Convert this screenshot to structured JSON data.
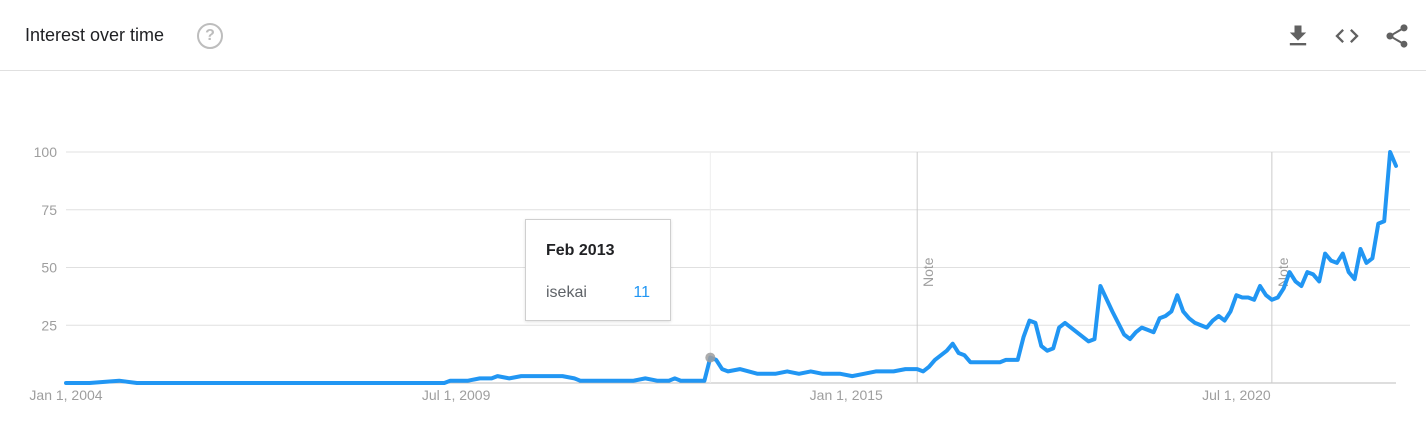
{
  "header": {
    "title": "Interest over time",
    "help_glyph": "?",
    "help_icon": "help-circle-icon",
    "tools": [
      {
        "name": "download-icon"
      },
      {
        "name": "embed-code-icon"
      },
      {
        "name": "share-icon"
      }
    ]
  },
  "tooltip": {
    "date": "Feb 2013",
    "term": "isekai",
    "value": "11"
  },
  "colors": {
    "series": "#2196f3",
    "grid": "#e0e0e0",
    "text": "#202124",
    "muted": "#9e9e9e"
  },
  "chart_data": {
    "type": "line",
    "title": "Interest over time",
    "xlabel": "",
    "ylabel": "",
    "ylim": [
      0,
      100
    ],
    "yticks": [
      25,
      50,
      75,
      100
    ],
    "xlim": [
      "2004-01",
      "2022-01"
    ],
    "xticks": [
      {
        "label": "Jan 1, 2004",
        "date": "2004-01"
      },
      {
        "label": "Jul 1, 2009",
        "date": "2009-07"
      },
      {
        "label": "Jan 1, 2015",
        "date": "2015-01"
      },
      {
        "label": "Jul 1, 2020",
        "date": "2020-07"
      }
    ],
    "notes": [
      {
        "label": "Note",
        "date": "2016-01"
      },
      {
        "label": "Note",
        "date": "2021-01"
      }
    ],
    "highlight": {
      "date": "2013-02",
      "value": 11
    },
    "series": [
      {
        "name": "isekai",
        "color": "#2196f3",
        "points": [
          [
            "2004-01",
            0
          ],
          [
            "2004-05",
            0
          ],
          [
            "2004-10",
            1
          ],
          [
            "2005-01",
            0
          ],
          [
            "2006-01",
            0
          ],
          [
            "2007-01",
            0
          ],
          [
            "2008-01",
            0
          ],
          [
            "2009-01",
            0
          ],
          [
            "2009-05",
            0
          ],
          [
            "2009-06",
            1
          ],
          [
            "2009-09",
            1
          ],
          [
            "2009-11",
            2
          ],
          [
            "2010-01",
            2
          ],
          [
            "2010-02",
            3
          ],
          [
            "2010-04",
            2
          ],
          [
            "2010-06",
            3
          ],
          [
            "2010-09",
            3
          ],
          [
            "2011-01",
            3
          ],
          [
            "2011-03",
            2
          ],
          [
            "2011-04",
            1
          ],
          [
            "2011-08",
            1
          ],
          [
            "2012-01",
            1
          ],
          [
            "2012-03",
            2
          ],
          [
            "2012-05",
            1
          ],
          [
            "2012-07",
            1
          ],
          [
            "2012-08",
            2
          ],
          [
            "2012-09",
            1
          ],
          [
            "2012-11",
            1
          ],
          [
            "2013-01",
            1
          ],
          [
            "2013-02",
            11
          ],
          [
            "2013-03",
            10
          ],
          [
            "2013-04",
            6
          ],
          [
            "2013-05",
            5
          ],
          [
            "2013-07",
            6
          ],
          [
            "2013-10",
            4
          ],
          [
            "2014-01",
            4
          ],
          [
            "2014-03",
            5
          ],
          [
            "2014-05",
            4
          ],
          [
            "2014-07",
            5
          ],
          [
            "2014-09",
            4
          ],
          [
            "2014-10",
            4
          ],
          [
            "2014-12",
            4
          ],
          [
            "2015-02",
            3
          ],
          [
            "2015-04",
            4
          ],
          [
            "2015-06",
            5
          ],
          [
            "2015-09",
            5
          ],
          [
            "2015-11",
            6
          ],
          [
            "2016-01",
            6
          ],
          [
            "2016-02",
            5
          ],
          [
            "2016-03",
            7
          ],
          [
            "2016-04",
            10
          ],
          [
            "2016-06",
            14
          ],
          [
            "2016-07",
            17
          ],
          [
            "2016-08",
            13
          ],
          [
            "2016-09",
            12
          ],
          [
            "2016-10",
            9
          ],
          [
            "2017-01",
            9
          ],
          [
            "2017-03",
            9
          ],
          [
            "2017-04",
            10
          ],
          [
            "2017-06",
            10
          ],
          [
            "2017-07",
            20
          ],
          [
            "2017-08",
            27
          ],
          [
            "2017-09",
            26
          ],
          [
            "2017-10",
            16
          ],
          [
            "2017-11",
            14
          ],
          [
            "2017-12",
            15
          ],
          [
            "2018-01",
            24
          ],
          [
            "2018-02",
            26
          ],
          [
            "2018-04",
            22
          ],
          [
            "2018-06",
            18
          ],
          [
            "2018-07",
            19
          ],
          [
            "2018-08",
            42
          ],
          [
            "2018-10",
            31
          ],
          [
            "2018-12",
            21
          ],
          [
            "2019-01",
            19
          ],
          [
            "2019-02",
            22
          ],
          [
            "2019-03",
            24
          ],
          [
            "2019-04",
            23
          ],
          [
            "2019-05",
            22
          ],
          [
            "2019-06",
            28
          ],
          [
            "2019-07",
            29
          ],
          [
            "2019-08",
            31
          ],
          [
            "2019-09",
            38
          ],
          [
            "2019-10",
            31
          ],
          [
            "2019-11",
            28
          ],
          [
            "2019-12",
            26
          ],
          [
            "2020-02",
            24
          ],
          [
            "2020-03",
            27
          ],
          [
            "2020-04",
            29
          ],
          [
            "2020-05",
            27
          ],
          [
            "2020-06",
            31
          ],
          [
            "2020-07",
            38
          ],
          [
            "2020-08",
            37
          ],
          [
            "2020-09",
            37
          ],
          [
            "2020-10",
            36
          ],
          [
            "2020-11",
            42
          ],
          [
            "2020-12",
            38
          ],
          [
            "2021-01",
            36
          ],
          [
            "2021-02",
            37
          ],
          [
            "2021-03",
            41
          ],
          [
            "2021-04",
            48
          ],
          [
            "2021-05",
            44
          ],
          [
            "2021-06",
            42
          ],
          [
            "2021-07",
            48
          ],
          [
            "2021-08",
            47
          ],
          [
            "2021-09",
            44
          ],
          [
            "2021-10",
            56
          ],
          [
            "2021-11",
            53
          ],
          [
            "2021-12",
            52
          ],
          [
            "2022-01",
            56
          ],
          [
            "2022-02",
            48
          ],
          [
            "2022-03",
            45
          ],
          [
            "2022-04",
            58
          ],
          [
            "2022-05",
            52
          ],
          [
            "2022-06",
            54
          ],
          [
            "2022-07",
            69
          ],
          [
            "2022-08",
            70
          ],
          [
            "2022-09",
            100
          ],
          [
            "2022-10",
            94
          ]
        ]
      }
    ]
  }
}
